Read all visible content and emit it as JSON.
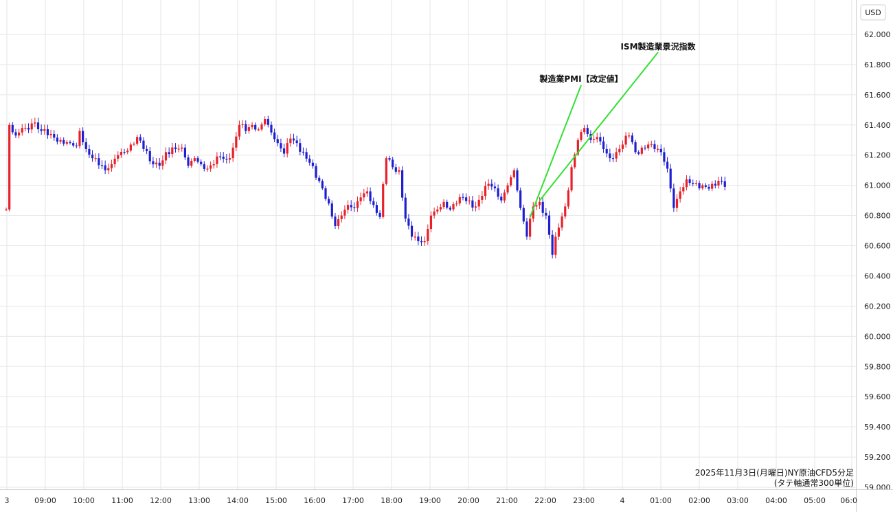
{
  "chart_data": {
    "type": "candlestick",
    "unit": "USD",
    "caption_line1": "2025年11月3日(月曜日)NY原油CFD5分足",
    "caption_line2": "(タテ軸通常300単位)",
    "ylim": [
      59.0,
      62.1
    ],
    "y_ticks": [
      "62.000",
      "61.800",
      "61.600",
      "61.400",
      "61.200",
      "61.000",
      "60.800",
      "60.600",
      "60.400",
      "60.200",
      "60.000",
      "59.800",
      "59.600",
      "59.400",
      "59.200",
      "59.000"
    ],
    "x_ticks": [
      "3",
      "09:00",
      "10:00",
      "11:00",
      "12:00",
      "13:00",
      "14:00",
      "15:00",
      "16:00",
      "17:00",
      "18:00",
      "19:00",
      "20:00",
      "21:00",
      "22:00",
      "23:00",
      "4",
      "01:00",
      "02:00",
      "03:00",
      "04:00",
      "05:00",
      "06:0"
    ],
    "annotations": [
      {
        "label": "製造業PMI【改定値】",
        "time_index": 164
      },
      {
        "label": "ISM製造業景況指数",
        "time_index": 167
      }
    ],
    "up_color": "#e8202a",
    "down_color": "#1f1fd2",
    "annotation_line_color": "#33e033",
    "anchor_points": [
      [
        0,
        60.84
      ],
      [
        1,
        61.4
      ],
      [
        3,
        61.33
      ],
      [
        5,
        61.38
      ],
      [
        7,
        61.37
      ],
      [
        8,
        61.41
      ],
      [
        11,
        61.36
      ],
      [
        14,
        61.34
      ],
      [
        17,
        61.3
      ],
      [
        20,
        61.28
      ],
      [
        22,
        61.26
      ],
      [
        23,
        61.36
      ],
      [
        25,
        61.24
      ],
      [
        28,
        61.18
      ],
      [
        31,
        61.1
      ],
      [
        33,
        61.14
      ],
      [
        35,
        61.2
      ],
      [
        37,
        61.22
      ],
      [
        39,
        61.27
      ],
      [
        41,
        61.32
      ],
      [
        43,
        61.24
      ],
      [
        45,
        61.16
      ],
      [
        48,
        61.13
      ],
      [
        50,
        61.22
      ],
      [
        53,
        61.24
      ],
      [
        55,
        61.25
      ],
      [
        57,
        61.13
      ],
      [
        59,
        61.18
      ],
      [
        61,
        61.14
      ],
      [
        63,
        61.11
      ],
      [
        65,
        61.14
      ],
      [
        67,
        61.19
      ],
      [
        69,
        61.17
      ],
      [
        71,
        61.25
      ],
      [
        73,
        61.4
      ],
      [
        75,
        61.36
      ],
      [
        77,
        61.4
      ],
      [
        79,
        61.37
      ],
      [
        81,
        61.44
      ],
      [
        83,
        61.35
      ],
      [
        85,
        61.28
      ],
      [
        87,
        61.21
      ],
      [
        89,
        61.31
      ],
      [
        91,
        61.28
      ],
      [
        93,
        61.22
      ],
      [
        95,
        61.15
      ],
      [
        97,
        61.05
      ],
      [
        99,
        60.98
      ],
      [
        101,
        60.88
      ],
      [
        103,
        60.73
      ],
      [
        105,
        60.8
      ],
      [
        107,
        60.87
      ],
      [
        109,
        60.85
      ],
      [
        111,
        60.92
      ],
      [
        113,
        60.96
      ],
      [
        115,
        60.87
      ],
      [
        117,
        60.79
      ],
      [
        119,
        61.18
      ],
      [
        121,
        61.12
      ],
      [
        123,
        61.1
      ],
      [
        125,
        60.78
      ],
      [
        127,
        60.66
      ],
      [
        129,
        60.63
      ],
      [
        131,
        60.63
      ],
      [
        133,
        60.8
      ],
      [
        135,
        60.84
      ],
      [
        137,
        60.89
      ],
      [
        139,
        60.84
      ],
      [
        141,
        60.88
      ],
      [
        143,
        60.92
      ],
      [
        145,
        60.9
      ],
      [
        147,
        60.86
      ],
      [
        149,
        60.93
      ],
      [
        151,
        61.01
      ],
      [
        153,
        60.98
      ],
      [
        155,
        60.9
      ],
      [
        157,
        61.0
      ],
      [
        159,
        61.1
      ],
      [
        161,
        60.85
      ],
      [
        163,
        60.66
      ],
      [
        165,
        60.86
      ],
      [
        167,
        60.89
      ],
      [
        169,
        60.8
      ],
      [
        171,
        60.54
      ],
      [
        173,
        60.72
      ],
      [
        175,
        60.86
      ],
      [
        177,
        61.12
      ],
      [
        179,
        61.3
      ],
      [
        181,
        61.38
      ],
      [
        183,
        61.3
      ],
      [
        185,
        61.32
      ],
      [
        187,
        61.24
      ],
      [
        189,
        61.18
      ],
      [
        191,
        61.22
      ],
      [
        193,
        61.27
      ],
      [
        195,
        61.33
      ],
      [
        197,
        61.22
      ],
      [
        199,
        61.25
      ],
      [
        201,
        61.27
      ],
      [
        203,
        61.24
      ],
      [
        205,
        61.22
      ],
      [
        207,
        61.11
      ],
      [
        209,
        60.85
      ],
      [
        211,
        60.96
      ],
      [
        213,
        61.04
      ],
      [
        215,
        61.01
      ],
      [
        217,
        60.98
      ],
      [
        219,
        60.99
      ],
      [
        221,
        61.01
      ],
      [
        223,
        61.03
      ],
      [
        225,
        60.99
      ]
    ]
  }
}
